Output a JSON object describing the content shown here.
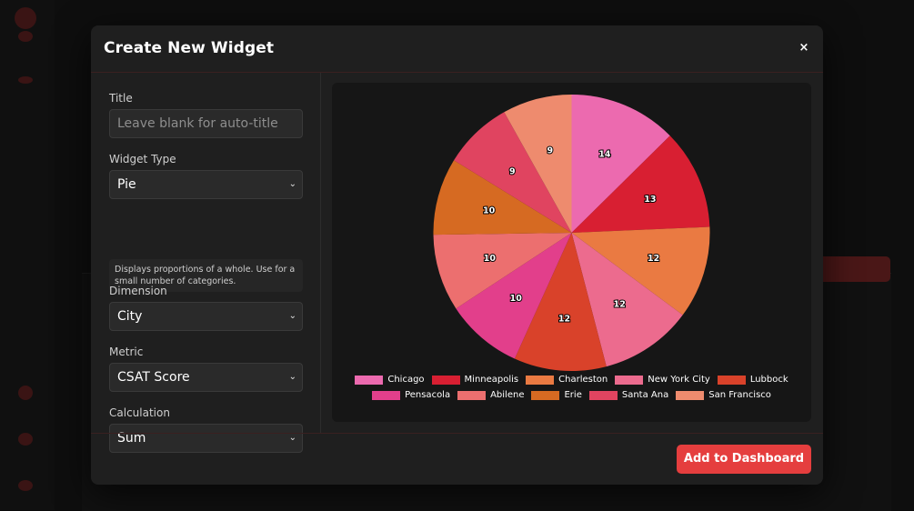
{
  "modal": {
    "title": "Create New Widget",
    "close_label": "×",
    "submit_label": "Add to Dashboard"
  },
  "form": {
    "title_label": "Title",
    "title_placeholder": "Leave blank for auto-title",
    "widget_type_label": "Widget Type",
    "widget_type_value": "Pie",
    "widget_type_help": "Displays proportions of a whole. Use for a small number of categories.",
    "dimension_label": "Dimension",
    "dimension_value": "City",
    "metric_label": "Metric",
    "metric_value": "CSAT Score",
    "calculation_label": "Calculation",
    "calculation_value": "Sum"
  },
  "icons": {
    "select_chevron": "chevron-down-icon",
    "close": "close-icon"
  },
  "colors": {
    "accent": "#e53e3e",
    "modal_bg": "#1f1f1f",
    "chart_bg": "#161616"
  },
  "chart_data": {
    "type": "pie",
    "categories": [
      "Chicago",
      "Minneapolis",
      "Charleston",
      "New York City",
      "Lubbock",
      "Pensacola",
      "Abilene",
      "Erie",
      "Santa Ana",
      "San Francisco"
    ],
    "values": [
      14,
      13,
      12,
      12,
      12,
      10,
      10,
      10,
      9,
      9
    ],
    "colors": [
      "#ec6aaf",
      "#d81f32",
      "#ea7a42",
      "#ec6b8e",
      "#d9422a",
      "#e23f8b",
      "#ec6f6f",
      "#d66a22",
      "#e04460",
      "#ee8b6e"
    ],
    "legend_position": "bottom"
  }
}
